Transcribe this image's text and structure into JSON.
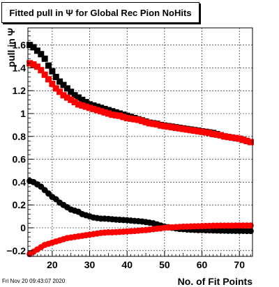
{
  "title": "Fitted pull in Ψ  for Global Rec Pion NoHits",
  "timestamp": "Fri Nov 20 09:43:07 2020",
  "chart_data": {
    "type": "scatter",
    "title": "Fitted pull in Ψ  for Global Rec Pion NoHits",
    "xlabel": "No. of Fit Points",
    "ylabel": "pull in Ψ",
    "xlim": [
      13.5,
      73.5
    ],
    "ylim": [
      -0.25,
      1.75
    ],
    "x_ticks": [
      20,
      30,
      40,
      50,
      60,
      70
    ],
    "y_ticks": [
      -0.2,
      0,
      0.2,
      0.4,
      0.6,
      0.8,
      1,
      1.2,
      1.4,
      1.6
    ],
    "y_tick_labels": [
      "−0.2",
      "0",
      "0.2",
      "0.4",
      "0.6",
      "0.8",
      "1",
      "1.2",
      "1.4",
      "1.6"
    ],
    "grid": true,
    "x": [
      14,
      15,
      16,
      17,
      18,
      19,
      20,
      21,
      22,
      23,
      24,
      25,
      26,
      27,
      28,
      29,
      30,
      31,
      32,
      33,
      34,
      35,
      36,
      37,
      38,
      39,
      40,
      41,
      42,
      43,
      44,
      45,
      46,
      47,
      48,
      49,
      50,
      51,
      52,
      53,
      54,
      55,
      56,
      57,
      58,
      59,
      60,
      61,
      62,
      63,
      64,
      65,
      66,
      67,
      68,
      69,
      70,
      71,
      72,
      73
    ],
    "series": [
      {
        "name": "",
        "color": "#000000",
        "marker": "square",
        "values": [
          1.6,
          1.58,
          1.55,
          1.52,
          1.48,
          1.42,
          1.37,
          1.32,
          1.28,
          1.25,
          1.22,
          1.19,
          1.16,
          1.14,
          1.12,
          1.1,
          1.08,
          1.07,
          1.06,
          1.05,
          1.04,
          1.03,
          1.02,
          1.01,
          1.0,
          0.99,
          0.98,
          0.97,
          0.96,
          0.95,
          0.94,
          0.93,
          0.92,
          0.915,
          0.91,
          0.9,
          0.895,
          0.89,
          0.885,
          0.88,
          0.875,
          0.87,
          0.865,
          0.86,
          0.855,
          0.85,
          0.845,
          0.84,
          0.835,
          0.83,
          0.82,
          0.81,
          0.8,
          0.795,
          0.79,
          0.785,
          0.78,
          0.77,
          0.76,
          0.75
        ]
      },
      {
        "name": "",
        "color": "#ff0000",
        "marker": "square",
        "values": [
          1.44,
          1.43,
          1.41,
          1.38,
          1.34,
          1.3,
          1.26,
          1.22,
          1.19,
          1.16,
          1.14,
          1.12,
          1.1,
          1.08,
          1.07,
          1.06,
          1.05,
          1.04,
          1.03,
          1.02,
          1.01,
          1.0,
          0.99,
          0.985,
          0.98,
          0.97,
          0.96,
          0.955,
          0.95,
          0.945,
          0.935,
          0.925,
          0.915,
          0.91,
          0.905,
          0.895,
          0.89,
          0.885,
          0.88,
          0.875,
          0.87,
          0.865,
          0.86,
          0.855,
          0.85,
          0.845,
          0.84,
          0.835,
          0.83,
          0.82,
          0.815,
          0.81,
          0.8,
          0.795,
          0.79,
          0.785,
          0.78,
          0.77,
          0.76,
          0.75
        ]
      },
      {
        "name": "",
        "color": "#000000",
        "marker": "circle",
        "values": [
          0.41,
          0.4,
          0.38,
          0.36,
          0.33,
          0.3,
          0.27,
          0.25,
          0.22,
          0.2,
          0.18,
          0.16,
          0.15,
          0.14,
          0.12,
          0.11,
          0.1,
          0.09,
          0.085,
          0.08,
          0.08,
          0.078,
          0.075,
          0.072,
          0.07,
          0.068,
          0.066,
          0.063,
          0.06,
          0.058,
          0.055,
          0.05,
          0.045,
          0.04,
          0.03,
          0.02,
          0.01,
          0.005,
          0.0,
          -0.005,
          -0.01,
          -0.012,
          -0.015,
          -0.017,
          -0.018,
          -0.02,
          -0.02,
          -0.022,
          -0.022,
          -0.023,
          -0.024,
          -0.025,
          -0.025,
          -0.026,
          -0.026,
          -0.027,
          -0.027,
          -0.027,
          -0.028,
          -0.028
        ]
      },
      {
        "name": "",
        "color": "#ff0000",
        "marker": "circle",
        "values": [
          -0.23,
          -0.21,
          -0.19,
          -0.17,
          -0.15,
          -0.14,
          -0.13,
          -0.12,
          -0.11,
          -0.1,
          -0.09,
          -0.085,
          -0.08,
          -0.075,
          -0.07,
          -0.065,
          -0.06,
          -0.055,
          -0.05,
          -0.045,
          -0.042,
          -0.04,
          -0.04,
          -0.038,
          -0.036,
          -0.034,
          -0.032,
          -0.03,
          -0.028,
          -0.025,
          -0.022,
          -0.02,
          -0.016,
          -0.012,
          -0.008,
          -0.005,
          0.0,
          0.002,
          0.004,
          0.006,
          0.008,
          0.01,
          0.011,
          0.012,
          0.013,
          0.014,
          0.015,
          0.016,
          0.017,
          0.018,
          0.018,
          0.019,
          0.019,
          0.019,
          0.019,
          0.02,
          0.02,
          0.02,
          0.02,
          0.02
        ]
      }
    ]
  }
}
